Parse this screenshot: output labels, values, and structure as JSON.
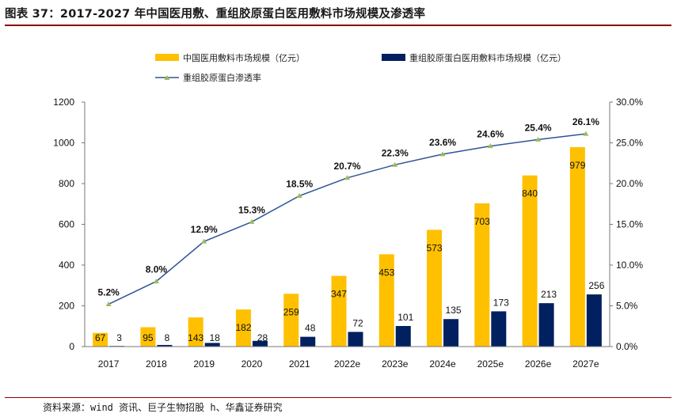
{
  "title": "图表 37：2017-2027 年中国医用敷、重组胶原蛋白医用敷料市场规模及渗透率",
  "source": "资料来源：wind 资讯、巨子生物招股 h、华鑫证券研究",
  "colors": {
    "series1": "#FFC000",
    "series2": "#002060",
    "line": "#2E5597",
    "marker": "#9BBB59",
    "rule": "#8B0000"
  },
  "chart_data": {
    "type": "bar",
    "categories": [
      "2017",
      "2018",
      "2019",
      "2020",
      "2021",
      "2022e",
      "2023e",
      "2024e",
      "2025e",
      "2026e",
      "2027e"
    ],
    "series": [
      {
        "name": "中国医用敷料市场规模（亿元）",
        "type": "bar",
        "axis": "left",
        "values": [
          67,
          95,
          143,
          182,
          259,
          347,
          453,
          573,
          703,
          840,
          979
        ],
        "labels": [
          "67",
          "95",
          "143",
          "182",
          "259",
          "347",
          "453",
          "573",
          "703",
          "840",
          "979"
        ]
      },
      {
        "name": "重组胶原蛋白医用敷料市场规模（亿元）",
        "type": "bar",
        "axis": "left",
        "values": [
          3,
          8,
          18,
          28,
          48,
          72,
          101,
          135,
          173,
          213,
          256
        ],
        "labels": [
          "3",
          "8",
          "18",
          "28",
          "48",
          "72",
          "101",
          "135",
          "173",
          "213",
          "256"
        ]
      },
      {
        "name": "重组胶原蛋白渗透率",
        "type": "line",
        "axis": "right",
        "values": [
          5.2,
          8.0,
          12.9,
          15.3,
          18.5,
          20.7,
          22.3,
          23.6,
          24.6,
          25.4,
          26.1
        ],
        "labels": [
          "5.2%",
          "8.0%",
          "12.9%",
          "15.3%",
          "18.5%",
          "20.7%",
          "22.3%",
          "23.6%",
          "24.6%",
          "25.4%",
          "26.1%"
        ]
      }
    ],
    "y_left": {
      "min": 0,
      "max": 1200,
      "ticks": [
        "0",
        "200",
        "400",
        "600",
        "800",
        "1000",
        "1200"
      ]
    },
    "y_right": {
      "min": 0,
      "max": 30,
      "ticks": [
        "0.0%",
        "5.0%",
        "10.0%",
        "15.0%",
        "20.0%",
        "25.0%",
        "30.0%"
      ]
    },
    "grid": false,
    "legend_position": "top"
  }
}
